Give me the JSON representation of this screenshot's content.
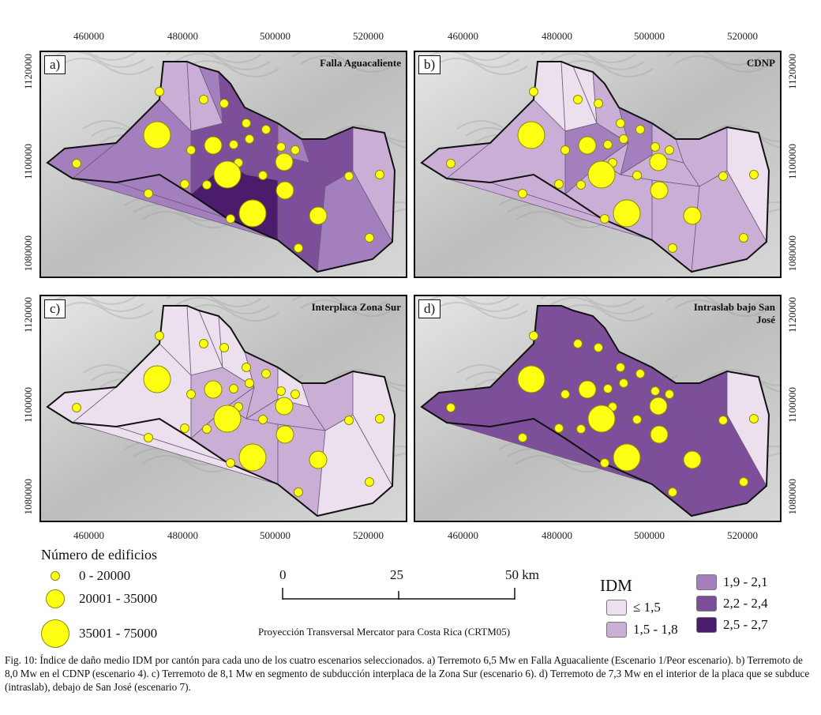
{
  "axes": {
    "x_ticks": [
      "460000",
      "480000",
      "500000",
      "520000"
    ],
    "y_ticks": [
      "1120000",
      "1100000",
      "1080000"
    ]
  },
  "panels": [
    {
      "letter": "a)",
      "title": "Falla Aguacaliente",
      "idm_classes": [
        3,
        3,
        2,
        2,
        3,
        4,
        4,
        4,
        3,
        3,
        4,
        5,
        4,
        3,
        4,
        4,
        3,
        2
      ]
    },
    {
      "letter": "b)",
      "title": "CDNP",
      "idm_classes": [
        2,
        2,
        1,
        1,
        1,
        2,
        3,
        2,
        2,
        2,
        3,
        2,
        2,
        2,
        2,
        2,
        2,
        1
      ]
    },
    {
      "letter": "c)",
      "title": "Interplaca Zona Sur",
      "idm_classes": [
        1,
        1,
        1,
        1,
        1,
        1,
        2,
        2,
        1,
        1,
        2,
        2,
        2,
        1,
        2,
        2,
        1,
        1
      ]
    },
    {
      "letter": "d)",
      "title": "Intraslab bajo San José",
      "idm_classes": [
        4,
        4,
        4,
        4,
        4,
        4,
        4,
        4,
        4,
        4,
        4,
        4,
        4,
        4,
        4,
        4,
        4,
        1
      ]
    }
  ],
  "buildings_legend": {
    "title": "Número de edificios",
    "classes": [
      "0 - 20000",
      "20001 - 35000",
      "35001 - 75000"
    ]
  },
  "scale_bar": {
    "labels": [
      "0",
      "25",
      "50 km"
    ]
  },
  "projection": "Proyección Transversal Mercator para Costa Rica (CRTM05)",
  "idm_legend": {
    "title": "IDM",
    "classes": [
      "≤ 1,5",
      "1,5 - 1,8",
      "1,9 - 2,1",
      "2,2 - 2,4",
      "2,5 - 2,7"
    ],
    "colors": [
      "#ede0ee",
      "#cbaed6",
      "#a47fbd",
      "#7d4f9b",
      "#4b1b6c"
    ]
  },
  "caption": "Fig. 10: Índice de daño medio IDM por cantón para cada uno de los cuatro escenarios seleccionados. a) Terremoto 6,5 Mw en Falla Aguacaliente (Escenario 1/Peor escenario). b) Terremoto de 8,0 Mw en el CDNP (escenario 4). c) Terremoto de 8,1 Mw en segmento de subducción interplaca de la Zona Sur (escenario 6). d) Terremoto de 7,3 Mw en el interior de la placa que se subduce (intraslab), debajo de San José (escenario 7).",
  "colors": {
    "circle_fill": "#ffff14",
    "circle_stroke": "#8a8a00",
    "hillshade": "#cfcfcf",
    "boundary": "#6b5a7a"
  }
}
